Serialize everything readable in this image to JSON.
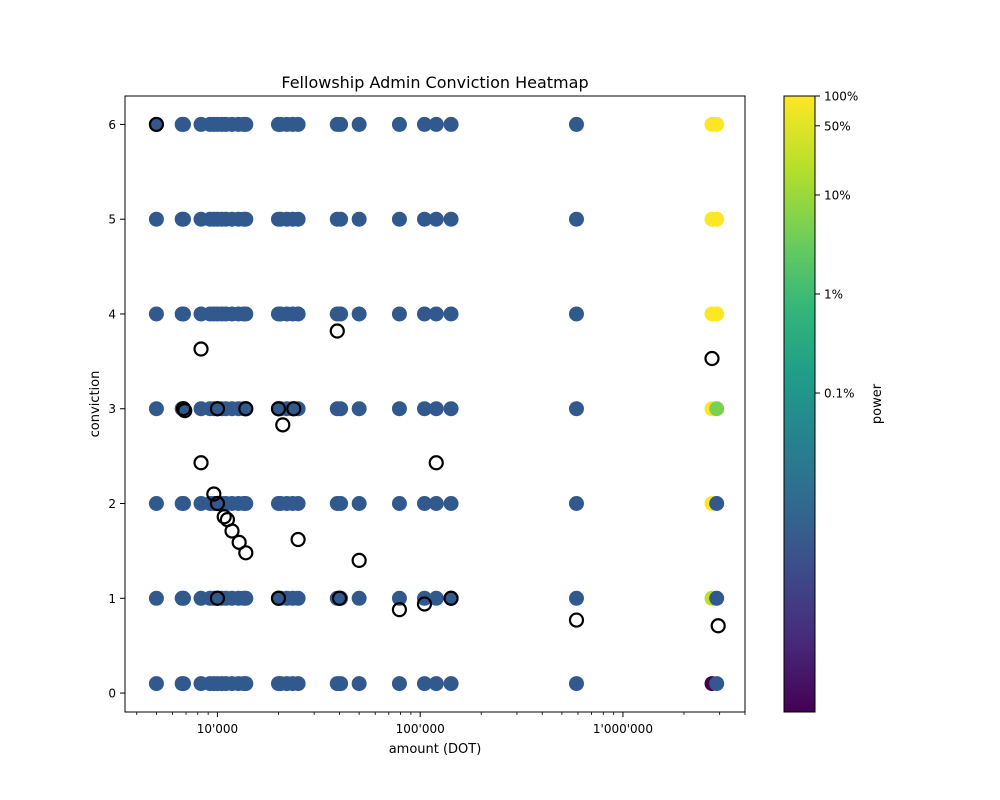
{
  "chart_data": {
    "type": "scatter",
    "title": "Fellowship Admin Conviction Heatmap",
    "xlabel": "amount (DOT)",
    "ylabel": "conviction",
    "xscale": "log",
    "xlim": [
      3500,
      4000000
    ],
    "ylim": [
      -0.2,
      6.3
    ],
    "x_ticks": [
      {
        "value": 10000,
        "label": "10'000"
      },
      {
        "value": 100000,
        "label": "100'000"
      },
      {
        "value": 1000000,
        "label": "1'000'000"
      }
    ],
    "y_ticks": [
      {
        "value": 0,
        "label": "0"
      },
      {
        "value": 1,
        "label": "1"
      },
      {
        "value": 2,
        "label": "2"
      },
      {
        "value": 3,
        "label": "3"
      },
      {
        "value": 4,
        "label": "4"
      },
      {
        "value": 5,
        "label": "5"
      },
      {
        "value": 6,
        "label": "6"
      }
    ],
    "grid": false,
    "colorbar": {
      "label": "power",
      "colormap": "viridis",
      "scale": "log",
      "ticks": [
        "100%",
        "50%",
        "10%",
        "1%",
        "0.1%"
      ],
      "tick_fracs": [
        1.0,
        0.5,
        0.1,
        0.01,
        0.001
      ]
    },
    "heat_points": {
      "amounts": [
        5000,
        6700,
        6800,
        8300,
        9200,
        9600,
        10000,
        10500,
        11000,
        11800,
        12700,
        13500,
        13800,
        20000,
        20500,
        22000,
        23500,
        25000,
        39000,
        40500,
        50000,
        79000,
        105000,
        120000,
        142000,
        590000
      ],
      "convictions": [
        0.1,
        1,
        2,
        3,
        4,
        5,
        6
      ],
      "color": "#31598d"
    },
    "special_points": [
      {
        "amount": 2750000,
        "conviction": 0.1,
        "color": "#440154"
      },
      {
        "amount": 2900000,
        "conviction": 0.1,
        "color": "#31598d"
      },
      {
        "amount": 2750000,
        "conviction": 1,
        "color": "#bddf26"
      },
      {
        "amount": 2900000,
        "conviction": 1,
        "color": "#31598d"
      },
      {
        "amount": 2750000,
        "conviction": 2,
        "color": "#fde725"
      },
      {
        "amount": 2900000,
        "conviction": 2,
        "color": "#31598d"
      },
      {
        "amount": 2750000,
        "conviction": 3,
        "color": "#fde725"
      },
      {
        "amount": 2900000,
        "conviction": 3,
        "color": "#7ad151"
      },
      {
        "amount": 2750000,
        "conviction": 4,
        "color": "#fde725"
      },
      {
        "amount": 2900000,
        "conviction": 4,
        "color": "#fde725"
      },
      {
        "amount": 2750000,
        "conviction": 5,
        "color": "#fde725"
      },
      {
        "amount": 2900000,
        "conviction": 5,
        "color": "#fde725"
      },
      {
        "amount": 2750000,
        "conviction": 6,
        "color": "#fde725"
      },
      {
        "amount": 2900000,
        "conviction": 6,
        "color": "#fde725"
      }
    ],
    "votes": [
      {
        "amount": 5000,
        "conviction": 6
      },
      {
        "amount": 6800,
        "conviction": 3
      },
      {
        "amount": 6900,
        "conviction": 2.98
      },
      {
        "amount": 10000,
        "conviction": 3
      },
      {
        "amount": 13800,
        "conviction": 3
      },
      {
        "amount": 20000,
        "conviction": 3
      },
      {
        "amount": 23800,
        "conviction": 3
      },
      {
        "amount": 21000,
        "conviction": 2.83
      },
      {
        "amount": 8300,
        "conviction": 3.63
      },
      {
        "amount": 39000,
        "conviction": 3.82
      },
      {
        "amount": 2750000,
        "conviction": 3.53
      },
      {
        "amount": 8300,
        "conviction": 2.43
      },
      {
        "amount": 120000,
        "conviction": 2.43
      },
      {
        "amount": 9600,
        "conviction": 2.1
      },
      {
        "amount": 10000,
        "conviction": 2.0
      },
      {
        "amount": 10800,
        "conviction": 1.86
      },
      {
        "amount": 11200,
        "conviction": 1.83
      },
      {
        "amount": 11800,
        "conviction": 1.71
      },
      {
        "amount": 12800,
        "conviction": 1.59
      },
      {
        "amount": 13800,
        "conviction": 1.48
      },
      {
        "amount": 25000,
        "conviction": 1.62
      },
      {
        "amount": 50000,
        "conviction": 1.4
      },
      {
        "amount": 10000,
        "conviction": 1.0
      },
      {
        "amount": 20000,
        "conviction": 1.0
      },
      {
        "amount": 40000,
        "conviction": 1.0
      },
      {
        "amount": 142000,
        "conviction": 1.0
      },
      {
        "amount": 79000,
        "conviction": 0.88
      },
      {
        "amount": 105000,
        "conviction": 0.94
      },
      {
        "amount": 590000,
        "conviction": 0.77
      },
      {
        "amount": 2950000,
        "conviction": 0.71
      }
    ]
  }
}
